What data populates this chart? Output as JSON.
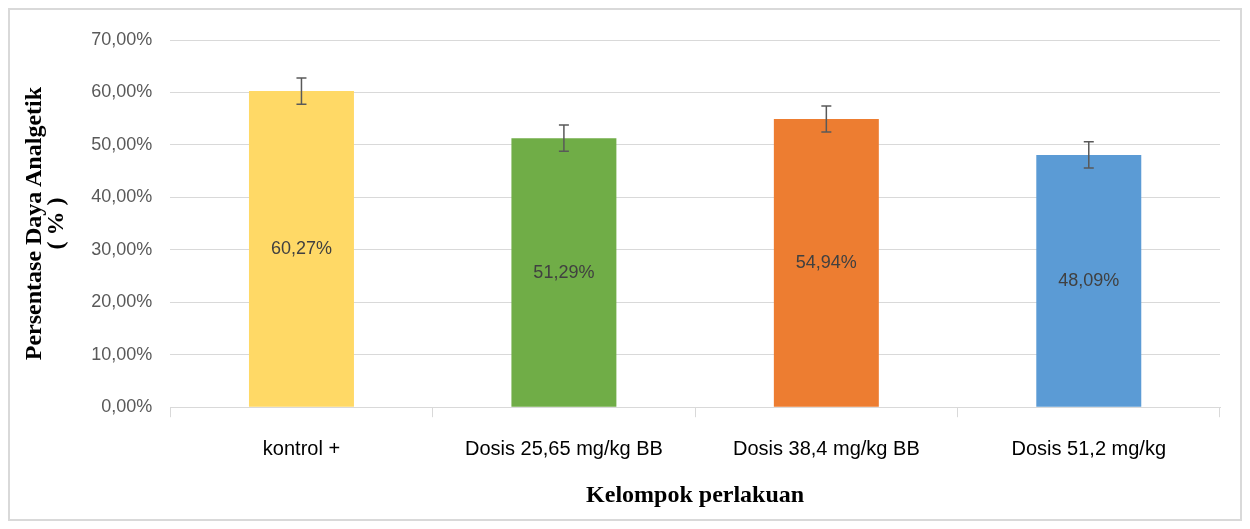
{
  "chart_data": {
    "type": "bar",
    "xlabel": "Kelompok perlakuan",
    "ylabel": [
      "Persentase Daya Analgetik",
      "( % )"
    ],
    "categories": [
      "kontrol +",
      "Dosis 25,65 mg/kg BB",
      "Dosis 38,4 mg/kg BB",
      "Dosis 51,2 mg/kg"
    ],
    "values": [
      60.27,
      51.29,
      54.94,
      48.09
    ],
    "colors": [
      "#ffd966",
      "#70ad47",
      "#ed7d31",
      "#5b9bd5"
    ],
    "errors": [
      2.5,
      2.5,
      2.5,
      2.5
    ],
    "value_labels": [
      "60,27%",
      "51,29%",
      "54,94%",
      "48,09%"
    ],
    "ylim": [
      0,
      70
    ],
    "yticks": [
      {
        "value": 0,
        "label": "0,00%"
      },
      {
        "value": 10,
        "label": "10,00%"
      },
      {
        "value": 20,
        "label": "20,00%"
      },
      {
        "value": 30,
        "label": "30,00%"
      },
      {
        "value": 40,
        "label": "40,00%"
      },
      {
        "value": 50,
        "label": "50,00%"
      },
      {
        "value": 60,
        "label": "60,00%"
      },
      {
        "value": 70,
        "label": "70,00%"
      }
    ],
    "grid": "y",
    "legend": false
  }
}
